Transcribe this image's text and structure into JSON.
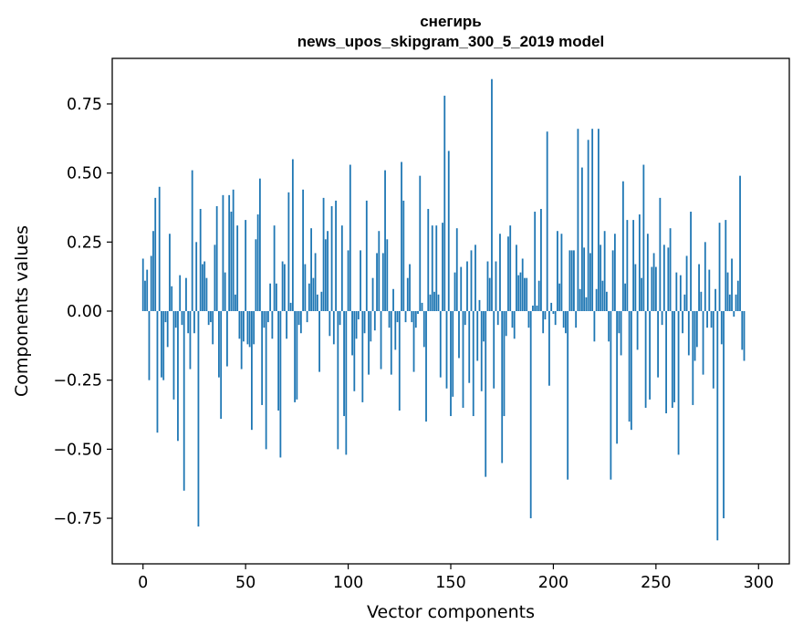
{
  "chart_data": {
    "type": "bar",
    "title": "снегирь",
    "subtitle": "news_upos_skipgram_300_5_2019 model",
    "xlabel": "Vector components",
    "ylabel": "Components values",
    "xlim": [
      -15,
      315
    ],
    "ylim": [
      -0.915,
      0.915
    ],
    "xticks": [
      0,
      50,
      100,
      150,
      200,
      250,
      300
    ],
    "xtick_labels": [
      "0",
      "50",
      "100",
      "150",
      "200",
      "250",
      "300"
    ],
    "yticks": [
      -0.75,
      -0.5,
      -0.25,
      0.0,
      0.25,
      0.5,
      0.75
    ],
    "ytick_labels": [
      "−0.75",
      "−0.50",
      "−0.25",
      "0.00",
      "0.25",
      "0.50",
      "0.75"
    ],
    "bar_color": "#1f77b4",
    "grid": false,
    "series": [
      {
        "name": "снегирь",
        "values": [
          0.19,
          0.11,
          0.15,
          -0.25,
          0.2,
          0.29,
          0.41,
          -0.44,
          0.45,
          -0.24,
          -0.25,
          -0.04,
          -0.13,
          0.28,
          0.09,
          -0.32,
          -0.06,
          -0.47,
          0.13,
          -0.05,
          -0.65,
          0.12,
          -0.08,
          -0.21,
          0.51,
          -0.08,
          0.25,
          -0.78,
          0.37,
          0.17,
          0.18,
          0.12,
          -0.05,
          -0.04,
          -0.12,
          0.24,
          0.38,
          -0.24,
          -0.39,
          0.42,
          0.14,
          -0.2,
          0.42,
          0.36,
          0.44,
          0.06,
          0.31,
          -0.1,
          -0.21,
          -0.11,
          0.33,
          -0.12,
          -0.13,
          -0.43,
          -0.12,
          0.26,
          0.35,
          0.48,
          -0.34,
          -0.06,
          -0.5,
          -0.04,
          0.1,
          -0.1,
          0.31,
          0.1,
          -0.36,
          -0.53,
          0.18,
          0.17,
          -0.1,
          0.43,
          0.03,
          0.55,
          -0.33,
          -0.32,
          -0.05,
          -0.08,
          0.44,
          0.17,
          -0.04,
          0.1,
          0.3,
          0.12,
          0.21,
          0.06,
          -0.22,
          0.07,
          0.41,
          0.26,
          0.29,
          -0.09,
          0.38,
          -0.12,
          0.4,
          -0.5,
          -0.05,
          0.31,
          -0.38,
          -0.52,
          0.22,
          0.53,
          -0.16,
          -0.29,
          -0.1,
          -0.03,
          0.22,
          -0.33,
          -0.08,
          0.4,
          -0.23,
          -0.11,
          0.12,
          -0.07,
          0.21,
          0.29,
          -0.21,
          0.21,
          0.51,
          0.26,
          -0.06,
          -0.23,
          0.08,
          -0.14,
          -0.04,
          -0.36,
          0.54,
          0.4,
          -0.04,
          0.12,
          0.17,
          -0.04,
          -0.22,
          -0.06,
          -0.01,
          0.49,
          0.03,
          -0.13,
          -0.4,
          0.37,
          0.06,
          0.31,
          0.07,
          0.31,
          0.06,
          -0.24,
          0.32,
          0.78,
          -0.28,
          0.58,
          -0.38,
          -0.31,
          0.14,
          0.3,
          -0.17,
          0.16,
          -0.35,
          -0.05,
          0.18,
          -0.26,
          0.22,
          -0.38,
          0.24,
          -0.18,
          0.04,
          -0.29,
          -0.11,
          -0.6,
          0.18,
          0.12,
          0.84,
          -0.28,
          0.18,
          -0.05,
          0.28,
          -0.55,
          -0.38,
          -0.09,
          0.27,
          0.31,
          -0.06,
          -0.1,
          0.24,
          0.13,
          0.14,
          0.19,
          0.12,
          0.12,
          -0.06,
          -0.75,
          0.02,
          0.36,
          0.02,
          0.11,
          0.37,
          -0.08,
          -0.03,
          0.65,
          -0.27,
          0.03,
          -0.01,
          -0.05,
          0.29,
          0.1,
          0.28,
          -0.06,
          -0.08,
          -0.61,
          0.22,
          0.22,
          0.22,
          -0.06,
          0.66,
          0.08,
          0.52,
          0.23,
          0.05,
          0.62,
          0.21,
          0.66,
          -0.11,
          0.08,
          0.66,
          0.24,
          0.11,
          0.29,
          0.07,
          -0.11,
          -0.61,
          0.22,
          0.28,
          -0.48,
          -0.08,
          -0.16,
          0.47,
          0.1,
          0.33,
          -0.4,
          -0.43,
          0.33,
          0.17,
          -0.14,
          0.35,
          0.12,
          0.53,
          -0.35,
          0.28,
          -0.32,
          0.16,
          0.21,
          0.16,
          -0.24,
          0.41,
          -0.05,
          0.24,
          -0.37,
          0.23,
          0.3,
          -0.35,
          -0.33,
          0.14,
          -0.52,
          0.13,
          -0.08,
          0.06,
          0.2,
          -0.16,
          0.36,
          -0.34,
          -0.18,
          -0.13,
          0.17,
          0.07,
          -0.23,
          0.25,
          -0.06,
          0.15,
          -0.06,
          -0.28,
          0.08,
          -0.83,
          0.32,
          -0.12,
          -0.75,
          0.33,
          0.14,
          0.06,
          0.19,
          -0.02,
          0.06,
          0.11,
          0.49,
          -0.14,
          -0.18
        ]
      }
    ]
  }
}
